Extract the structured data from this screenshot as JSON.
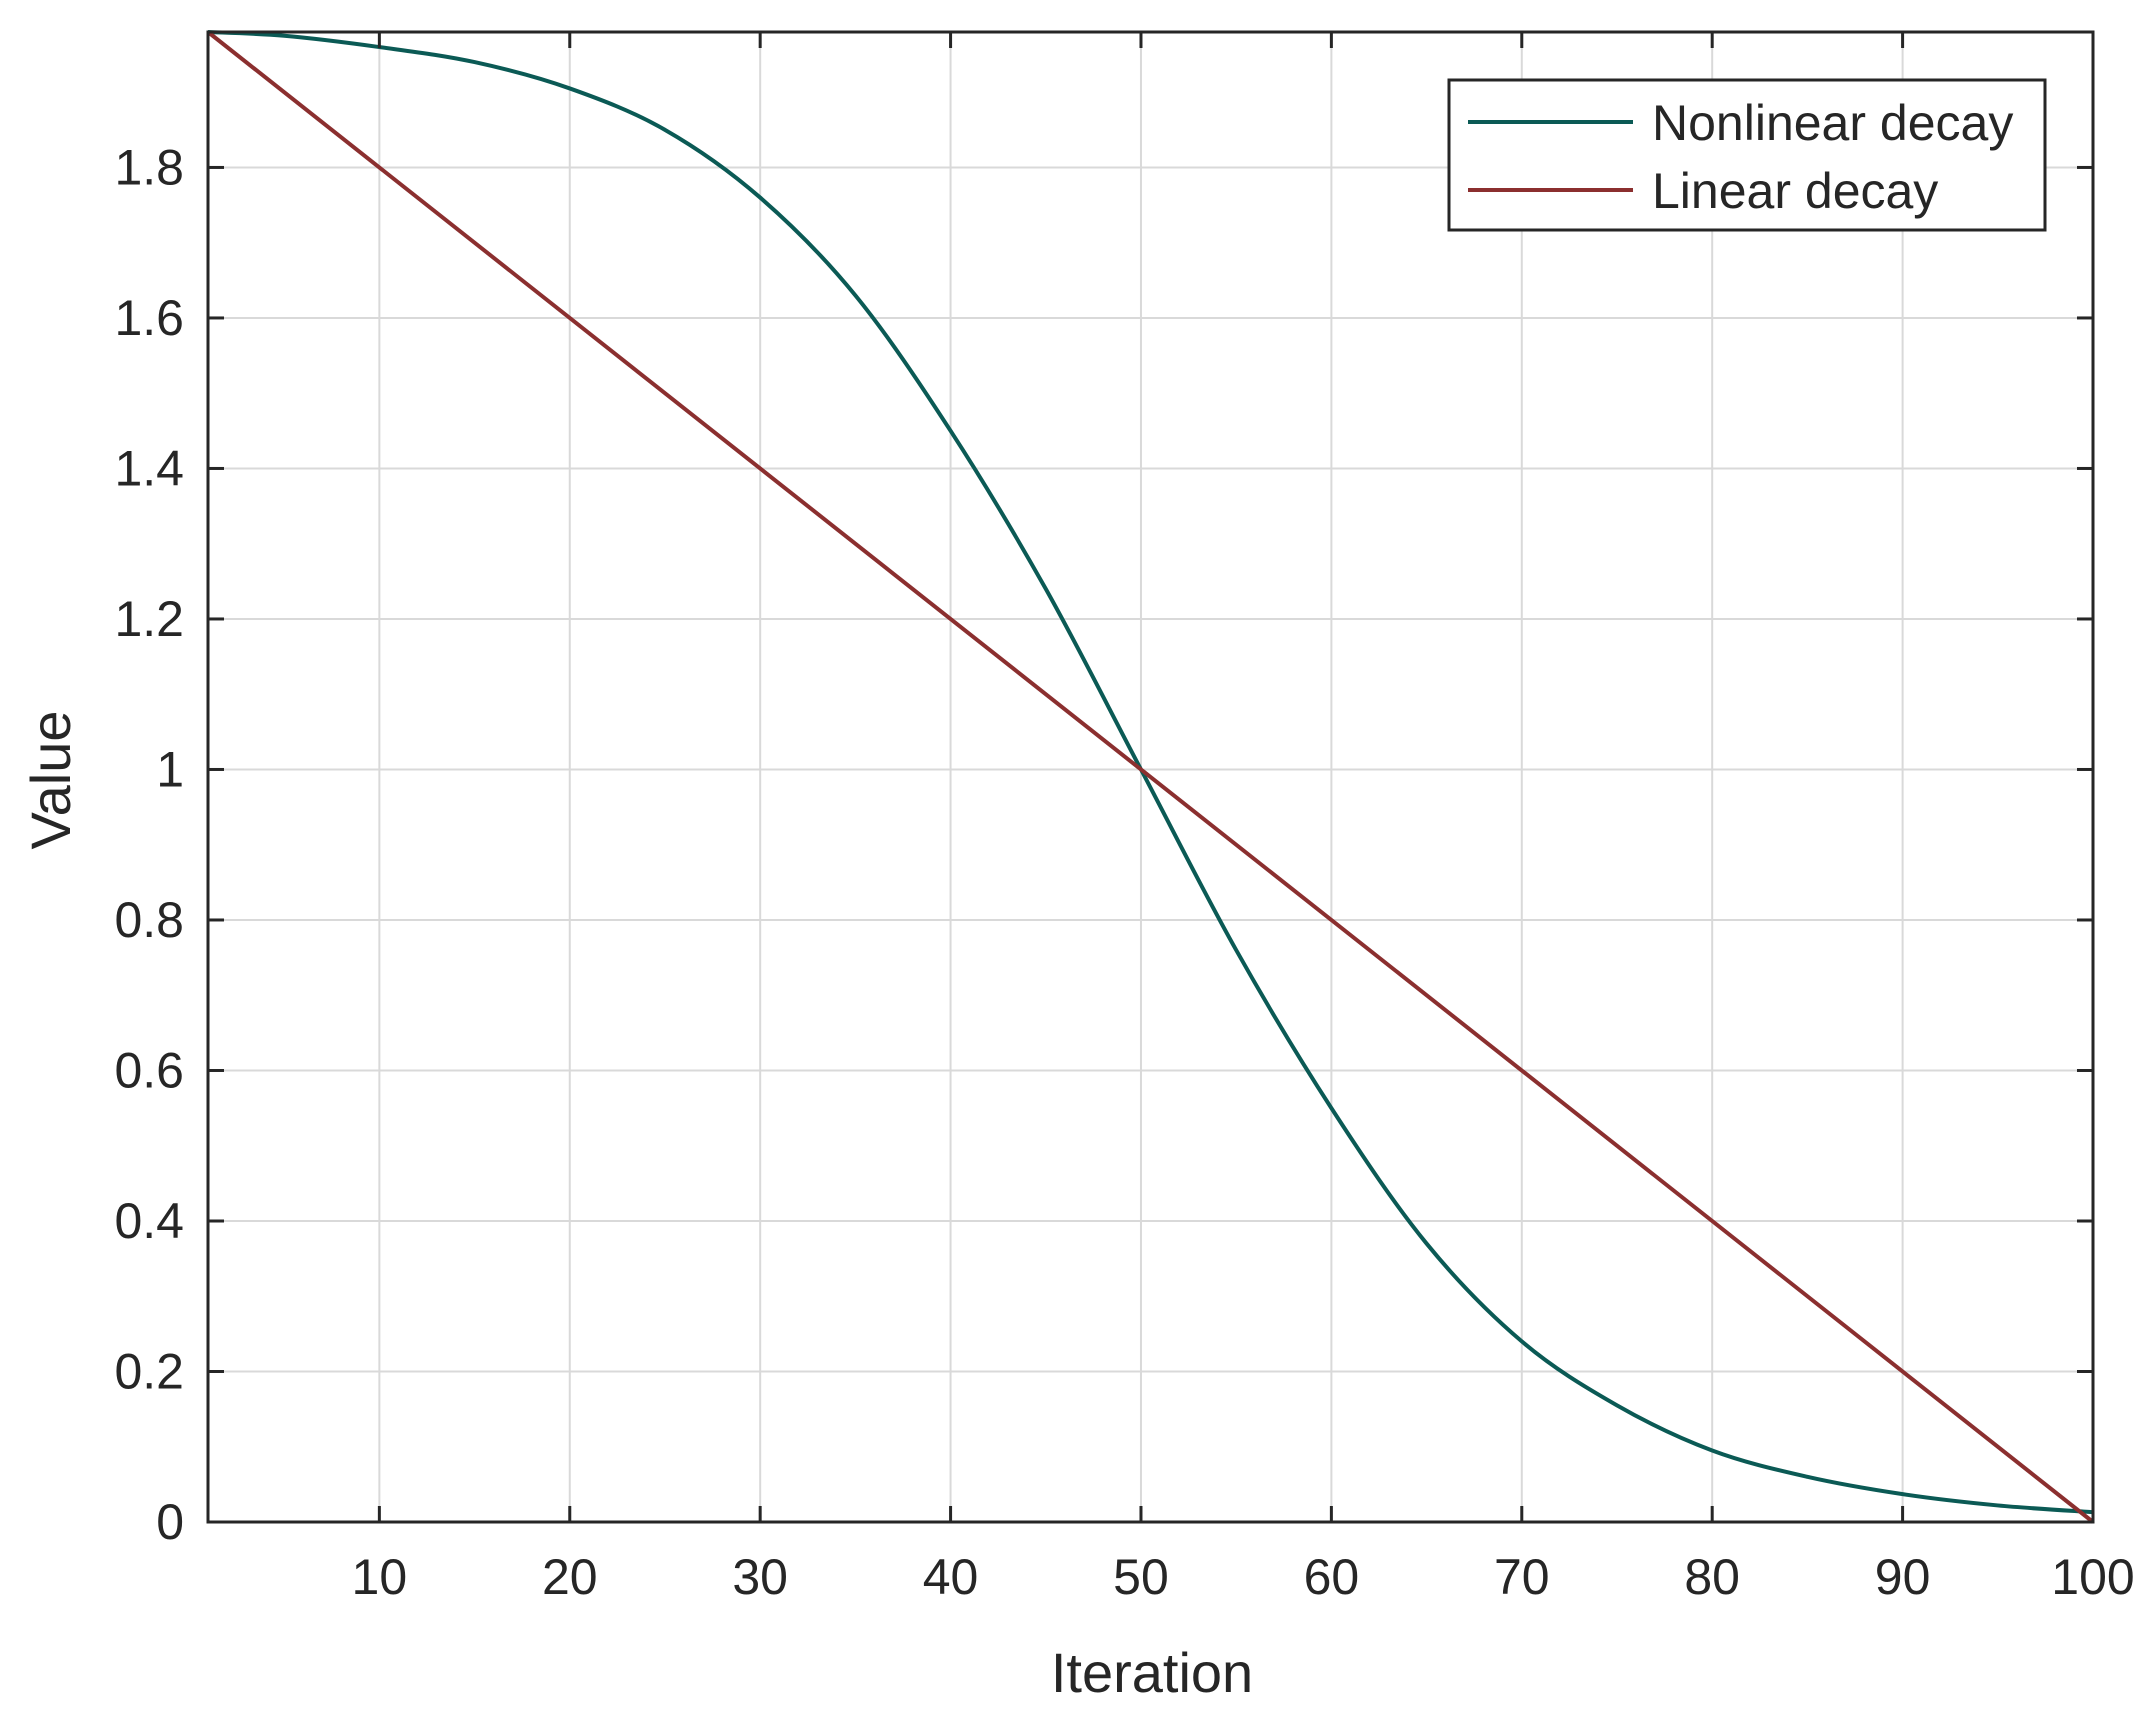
{
  "chart_data": {
    "type": "line",
    "title": "",
    "xlabel": "Iteration",
    "ylabel": "Value",
    "xlim": [
      1,
      100
    ],
    "ylim": [
      0,
      1.98
    ],
    "xticks": [
      10,
      20,
      30,
      40,
      50,
      60,
      70,
      80,
      90,
      100
    ],
    "xtick_labels": [
      "10",
      "20",
      "30",
      "40",
      "50",
      "60",
      "70",
      "80",
      "90",
      "100"
    ],
    "yticks": [
      0,
      0.2,
      0.4,
      0.6,
      0.8,
      1,
      1.2,
      1.4,
      1.6,
      1.8
    ],
    "ytick_labels": [
      "0",
      "0.2",
      "0.4",
      "0.6",
      "0.8",
      "1",
      "1.2",
      "1.4",
      "1.6",
      "1.8"
    ],
    "grid": true,
    "legend_position": "top-right",
    "series": [
      {
        "name": "Nonlinear decay",
        "color": "#0b5a55",
        "x": [
          1,
          5,
          10,
          15,
          20,
          25,
          30,
          35,
          40,
          45,
          50,
          55,
          60,
          65,
          70,
          75,
          80,
          85,
          90,
          95,
          100
        ],
        "y": [
          1.98,
          1.975,
          1.96,
          1.94,
          1.905,
          1.85,
          1.76,
          1.63,
          1.45,
          1.24,
          1.0,
          0.76,
          0.55,
          0.37,
          0.24,
          0.155,
          0.095,
          0.06,
          0.037,
          0.022,
          0.013
        ]
      },
      {
        "name": "Linear decay",
        "color": "#8b2f2f",
        "x": [
          1,
          100
        ],
        "y": [
          1.98,
          0.0
        ]
      }
    ]
  }
}
